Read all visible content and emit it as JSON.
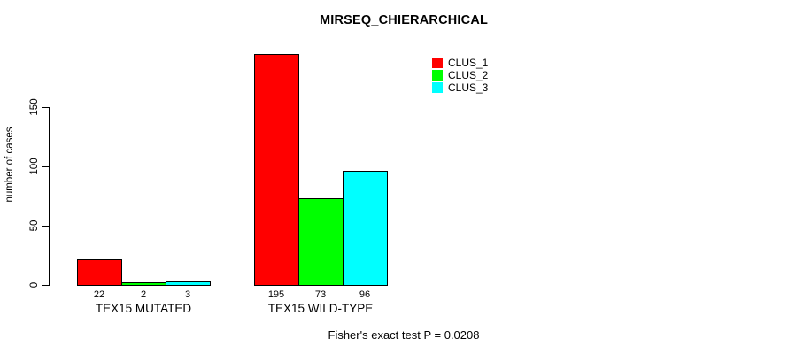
{
  "chart_data": {
    "type": "bar",
    "title": "MIRSEQ_CHIERARCHICAL",
    "xlabel": "",
    "ylabel": "number of cases",
    "categories": [
      "TEX15 MUTATED",
      "TEX15 WILD-TYPE"
    ],
    "series": [
      {
        "name": "CLUS_1",
        "color": "#ff0000",
        "values": [
          22,
          195
        ]
      },
      {
        "name": "CLUS_2",
        "color": "#00ff00",
        "values": [
          2,
          73
        ]
      },
      {
        "name": "CLUS_3",
        "color": "#00ffff",
        "values": [
          3,
          96
        ]
      }
    ],
    "bar_value_labels": [
      [
        "22",
        "2",
        "3"
      ],
      [
        "195",
        "73",
        "96"
      ]
    ],
    "yticks": [
      0,
      50,
      100,
      150
    ],
    "ylim": [
      0,
      200
    ],
    "grid": false,
    "legend_position": "top-right",
    "annotation": "Fisher's exact test P = 0.0208"
  },
  "colors": {
    "background": "#ffffff",
    "text": "#000000",
    "axis": "#000000",
    "bar_border": "#000000"
  }
}
